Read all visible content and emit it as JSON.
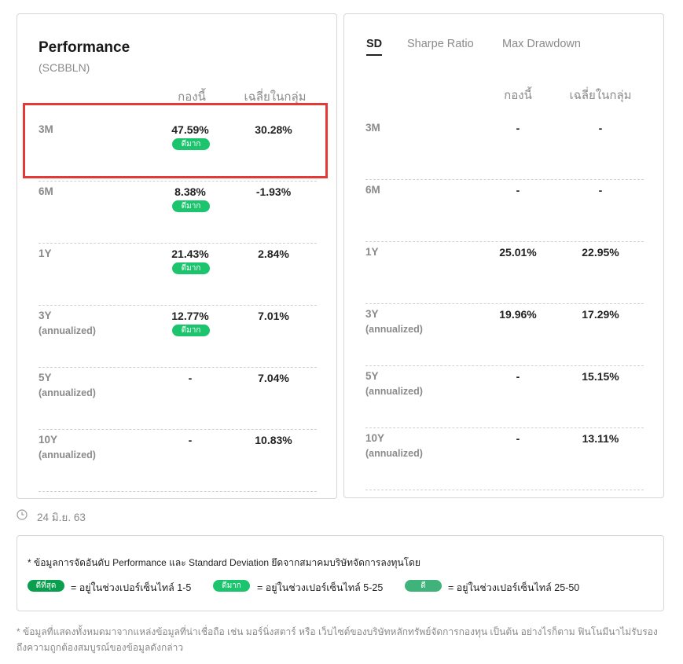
{
  "performance": {
    "title": "Performance",
    "code": "(SCBBLN)",
    "col_fund": "กองนี้",
    "col_avg": "เฉลี่ยในกลุ่ม",
    "rows": [
      {
        "label": "3M",
        "sublabel": "",
        "fund": "47.59%",
        "badge": "ดีมาก",
        "avg": "30.28%"
      },
      {
        "label": "6M",
        "sublabel": "",
        "fund": "8.38%",
        "badge": "ดีมาก",
        "avg": "-1.93%"
      },
      {
        "label": "1Y",
        "sublabel": "",
        "fund": "21.43%",
        "badge": "ดีมาก",
        "avg": "2.84%"
      },
      {
        "label": "3Y",
        "sublabel": "(annualized)",
        "fund": "12.77%",
        "badge": "ดีมาก",
        "avg": "7.01%"
      },
      {
        "label": "5Y",
        "sublabel": "(annualized)",
        "fund": "-",
        "badge": "",
        "avg": "7.04%"
      },
      {
        "label": "10Y",
        "sublabel": "(annualized)",
        "fund": "-",
        "badge": "",
        "avg": "10.83%"
      }
    ]
  },
  "risk": {
    "tabs": [
      {
        "label": "SD",
        "active": true
      },
      {
        "label": "Sharpe Ratio",
        "active": false
      },
      {
        "label": "Max Drawdown",
        "active": false
      }
    ],
    "col_fund": "กองนี้",
    "col_avg": "เฉลี่ยในกลุ่ม",
    "rows": [
      {
        "label": "3M",
        "sublabel": "",
        "fund": "-",
        "avg": "-"
      },
      {
        "label": "6M",
        "sublabel": "",
        "fund": "-",
        "avg": "-"
      },
      {
        "label": "1Y",
        "sublabel": "",
        "fund": "25.01%",
        "avg": "22.95%"
      },
      {
        "label": "3Y",
        "sublabel": "(annualized)",
        "fund": "19.96%",
        "avg": "17.29%"
      },
      {
        "label": "5Y",
        "sublabel": "(annualized)",
        "fund": "-",
        "avg": "15.15%"
      },
      {
        "label": "10Y",
        "sublabel": "(annualized)",
        "fund": "-",
        "avg": "13.11%"
      }
    ]
  },
  "date": "24 มิ.ย. 63",
  "legend": {
    "note": "* ข้อมูลการจัดอันดับ Performance และ Standard Deviation ยึดจากสมาคมบริษัทจัดการลงทุนโดย",
    "items": [
      {
        "badge": "ดีที่สุด",
        "text": "= อยู่ในช่วงเปอร์เซ็นไทล์ 1-5",
        "color": "#0a9e4f"
      },
      {
        "badge": "ดีมาก",
        "text": "= อยู่ในช่วงเปอร์เซ็นไทล์ 5-25",
        "color": "#1cc46e"
      },
      {
        "badge": "ดี",
        "text": "= อยู่ในช่วงเปอร์เซ็นไทล์ 25-50",
        "color": "#3fb37a"
      }
    ]
  },
  "footnote": "* ข้อมูลที่แสดงทั้งหมดมาจากแหล่งข้อมูลที่น่าเชื่อถือ เช่น มอร์นิ่งสตาร์ หรือ เว็บไซต์ของบริษัทหลักทรัพย์จัดการกองทุน เป็นต้น อย่างไรก็ตาม ฟินโนมีนาไม่รับรองถึงความถูกต้องสมบูรณ์ของข้อมูลดังกล่าว",
  "colors": {
    "badge_green": "#1cc46e",
    "highlight": "#e53935"
  }
}
